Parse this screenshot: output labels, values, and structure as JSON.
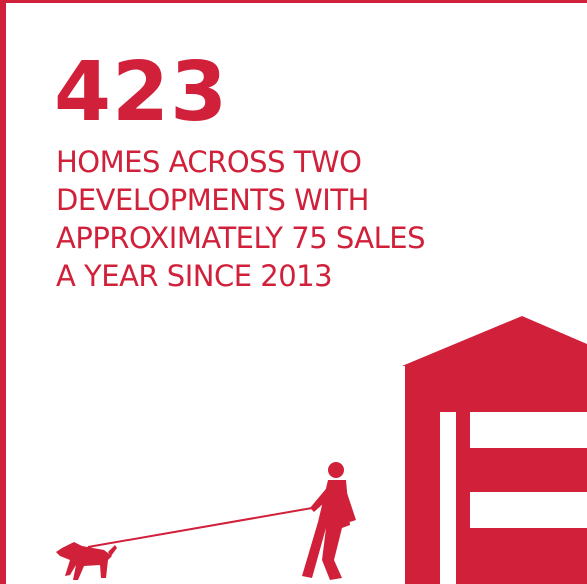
{
  "headline": {
    "number": "423",
    "lines": [
      "HOMES ACROSS TWO",
      "DEVELOPMENTS WITH",
      "APPROXIMATELY 75 SALES",
      "A YEAR SINCE 2013"
    ]
  }
}
